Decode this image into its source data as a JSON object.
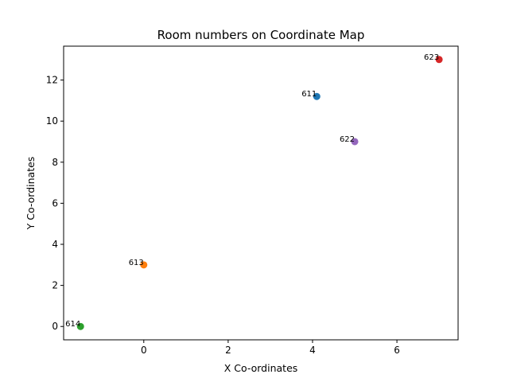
{
  "chart_data": {
    "type": "scatter",
    "title": "Room numbers on Coordinate Map",
    "xlabel": "X Co-ordinates",
    "ylabel": "Y Co-ordinates",
    "xlim": [
      -1.9,
      7.45
    ],
    "ylim": [
      -0.65,
      13.65
    ],
    "xticks": [
      0,
      2,
      4,
      6
    ],
    "yticks": [
      0,
      2,
      4,
      6,
      8,
      10,
      12
    ],
    "grid": false,
    "legend": "none",
    "points": [
      {
        "label": "611",
        "x": 4.1,
        "y": 11.2,
        "color": "#1f77b4"
      },
      {
        "label": "613",
        "x": 0.0,
        "y": 3.0,
        "color": "#ff7f0e"
      },
      {
        "label": "614",
        "x": -1.5,
        "y": 0.0,
        "color": "#2ca02c"
      },
      {
        "label": "623",
        "x": 7.0,
        "y": 13.0,
        "color": "#d62728"
      },
      {
        "label": "622",
        "x": 5.0,
        "y": 9.0,
        "color": "#9467bd"
      }
    ]
  }
}
